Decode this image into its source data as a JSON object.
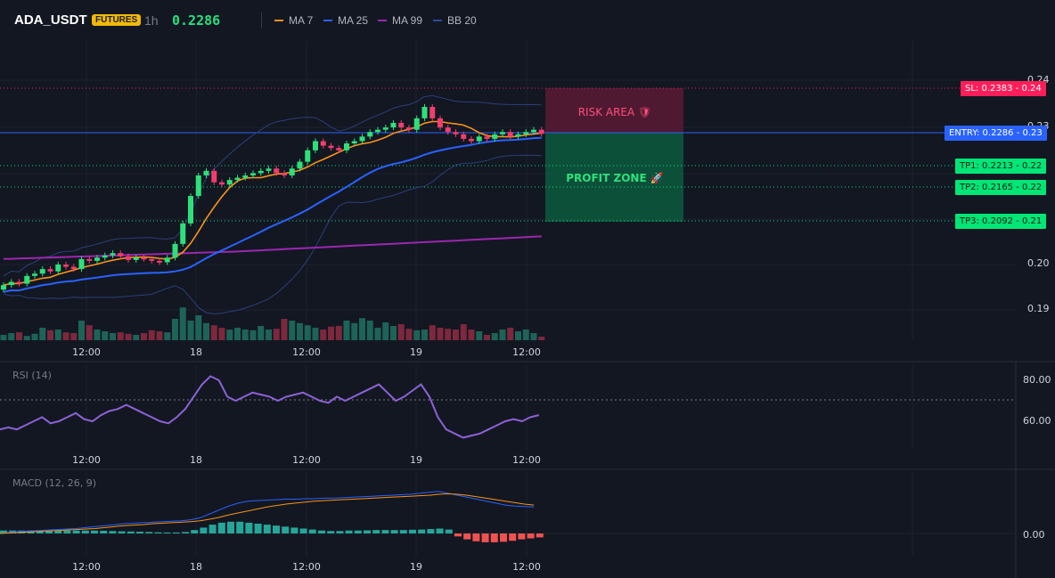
{
  "header": {
    "symbol": "ADA_USDT",
    "badge": "FUTURES",
    "timeframe": "1h",
    "last_price": "0.2286",
    "indicators": [
      {
        "name": "MA 7",
        "color": "#f7931a"
      },
      {
        "name": "MA 25",
        "color": "#2962ff"
      },
      {
        "name": "MA 99",
        "color": "#9c27b0"
      },
      {
        "name": "BB 20",
        "color": "#2a4a9a"
      }
    ]
  },
  "price_axis": [
    "0.24",
    "0.23",
    "0.22",
    "0.21",
    "0.20",
    "0.19"
  ],
  "time_axis": [
    "12:00",
    "18",
    "12:00",
    "19",
    "12:00"
  ],
  "levels": {
    "sl": {
      "label": "SL: 0.2383",
      "axis": "0.24",
      "color": "#ff1e5a"
    },
    "entry": {
      "label": "ENTRY: 0.2286",
      "axis": "0.23",
      "color": "#2962ff"
    },
    "tp1": {
      "label": "TP1: 0.2213",
      "axis": "0.22",
      "color": "#00e676"
    },
    "tp2": {
      "label": "TP2: 0.2165",
      "axis": "0.22",
      "color": "#00e676"
    },
    "tp3": {
      "label": "TP3: 0.2092",
      "axis": "0.21",
      "color": "#00e676"
    }
  },
  "zones": {
    "risk": "RISK AREA 🛡",
    "profit": "PROFIT ZONE 🚀"
  },
  "rsi": {
    "label": "RSI (14)",
    "axis": [
      "80.00",
      "60.00"
    ]
  },
  "macd": {
    "label": "MACD (12, 26, 9)",
    "axis": [
      "0.00"
    ]
  },
  "colors": {
    "up": "#26a69a",
    "up_bright": "#2ee07a",
    "down": "#f23d6d",
    "bg": "#131722"
  },
  "series": {
    "closes": [
      0.1955,
      0.1962,
      0.1958,
      0.1975,
      0.198,
      0.199,
      0.1985,
      0.2,
      0.1995,
      0.199,
      0.2012,
      0.2008,
      0.2015,
      0.202,
      0.2025,
      0.2018,
      0.201,
      0.2015,
      0.2012,
      0.2008,
      0.2005,
      0.2015,
      0.2045,
      0.209,
      0.215,
      0.2195,
      0.2205,
      0.218,
      0.2175,
      0.2185,
      0.219,
      0.2195,
      0.22,
      0.2205,
      0.221,
      0.22,
      0.2195,
      0.221,
      0.2225,
      0.225,
      0.227,
      0.226,
      0.2255,
      0.225,
      0.2265,
      0.227,
      0.228,
      0.229,
      0.2295,
      0.23,
      0.231,
      0.23,
      0.2295,
      0.232,
      0.2345,
      0.232,
      0.23,
      0.229,
      0.2285,
      0.2275,
      0.227,
      0.228,
      0.2275,
      0.2285,
      0.229,
      0.228,
      0.2285,
      0.229,
      0.2295,
      0.2286
    ],
    "volume": [
      0.15,
      0.2,
      0.22,
      0.12,
      0.18,
      0.35,
      0.28,
      0.3,
      0.22,
      0.2,
      0.55,
      0.42,
      0.3,
      0.25,
      0.2,
      0.22,
      0.18,
      0.15,
      0.2,
      0.28,
      0.25,
      0.22,
      0.6,
      0.92,
      0.55,
      0.7,
      0.48,
      0.42,
      0.35,
      0.3,
      0.35,
      0.3,
      0.28,
      0.4,
      0.3,
      0.32,
      0.6,
      0.55,
      0.48,
      0.42,
      0.35,
      0.3,
      0.38,
      0.4,
      0.55,
      0.48,
      0.62,
      0.55,
      0.35,
      0.5,
      0.4,
      0.45,
      0.32,
      0.28,
      0.3,
      0.42,
      0.35,
      0.32,
      0.3,
      0.45,
      0.3,
      0.25,
      0.15,
      0.2,
      0.3,
      0.35,
      0.25,
      0.3,
      0.2,
      0.1
    ],
    "rsi": [
      56,
      57,
      56,
      58,
      60,
      62,
      59,
      60,
      62,
      64,
      61,
      60,
      63,
      65,
      66,
      68,
      66,
      64,
      62,
      60,
      59,
      62,
      66,
      72,
      78,
      82,
      80,
      72,
      70,
      72,
      74,
      73,
      72,
      70,
      72,
      73,
      74,
      72,
      70,
      69,
      72,
      70,
      72,
      74,
      76,
      78,
      74,
      70,
      72,
      75,
      78,
      72,
      62,
      56,
      54,
      52,
      53,
      54,
      56,
      58,
      60,
      61,
      60,
      62,
      63
    ],
    "macd": [
      0.0,
      0.1,
      0.2,
      0.25,
      0.3,
      0.35,
      0.4,
      0.45,
      0.5,
      0.6,
      0.7,
      0.8,
      0.9,
      1.0,
      1.05,
      1.1,
      1.15,
      1.2,
      1.25,
      1.3,
      1.4,
      1.6,
      2.0,
      2.4,
      2.8,
      3.1,
      3.3,
      3.35,
      3.4,
      3.45,
      3.5,
      3.5,
      3.55,
      3.55,
      3.6,
      3.6,
      3.65,
      3.7,
      3.75,
      3.8,
      3.85,
      3.9,
      3.95,
      4.0,
      4.1,
      4.2,
      4.3,
      4.1,
      3.9,
      3.7,
      3.5,
      3.3,
      3.1,
      2.9,
      2.8,
      2.75,
      2.7
    ],
    "signal": [
      0.0,
      0.05,
      0.1,
      0.15,
      0.2,
      0.25,
      0.3,
      0.35,
      0.4,
      0.45,
      0.5,
      0.6,
      0.7,
      0.8,
      0.85,
      0.9,
      1.0,
      1.05,
      1.1,
      1.15,
      1.2,
      1.3,
      1.45,
      1.65,
      1.9,
      2.1,
      2.3,
      2.5,
      2.7,
      2.85,
      3.0,
      3.1,
      3.2,
      3.3,
      3.35,
      3.4,
      3.45,
      3.5,
      3.55,
      3.6,
      3.65,
      3.7,
      3.75,
      3.8,
      3.85,
      3.9,
      4.0,
      4.05,
      4.0,
      3.9,
      3.75,
      3.6,
      3.45,
      3.3,
      3.15,
      3.0,
      2.9
    ],
    "hist": [
      0.3,
      0.3,
      0.3,
      0.3,
      0.3,
      0.3,
      0.3,
      0.3,
      0.3,
      0.3,
      0.3,
      0.28,
      0.25,
      0.22,
      0.2,
      0.18,
      0.15,
      0.12,
      0.1,
      0.1,
      0.15,
      0.35,
      0.6,
      0.9,
      1.1,
      1.2,
      1.2,
      1.1,
      1.0,
      0.9,
      0.8,
      0.7,
      0.6,
      0.5,
      0.4,
      0.3,
      0.25,
      0.25,
      0.3,
      0.3,
      0.32,
      0.35,
      0.35,
      0.35,
      0.35,
      0.38,
      0.4,
      0.45,
      0.5,
      0.4,
      -0.3,
      -0.6,
      -0.8,
      -0.9,
      -0.9,
      -0.85,
      -0.75,
      -0.6,
      -0.5,
      -0.4
    ]
  }
}
